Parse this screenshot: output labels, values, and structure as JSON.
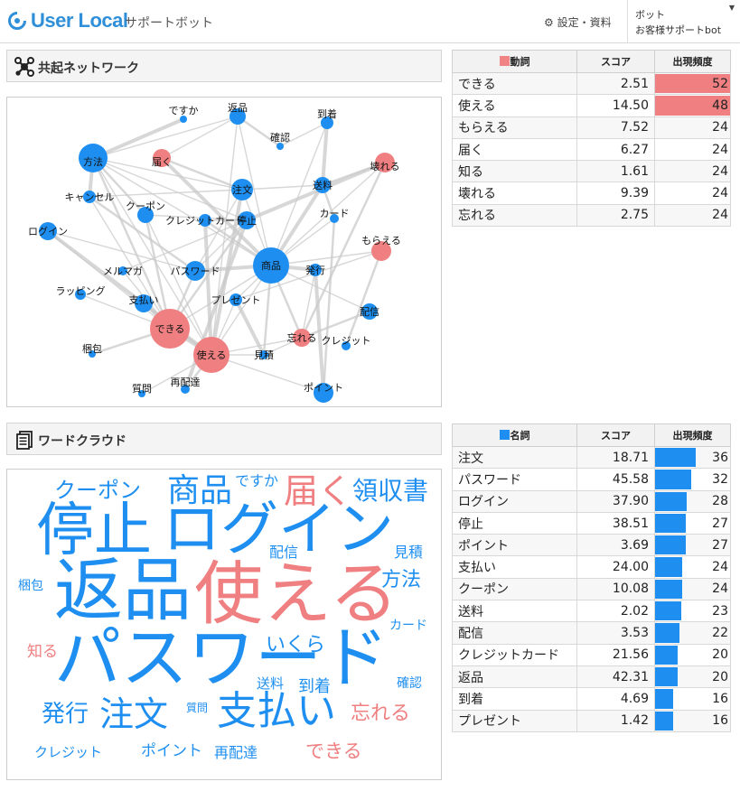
{
  "header": {
    "brand": "User Local",
    "subtitle": "サポートボット",
    "settings_link": "⚙ 設定・資料",
    "bot_label": "ボット",
    "bot_name": "お客様サポートbot"
  },
  "network": {
    "title": "共起ネットワーク",
    "nodes": [
      {
        "label": "ですか",
        "color": "blue",
        "size": 4
      },
      {
        "label": "返品",
        "color": "blue",
        "size": 9
      },
      {
        "label": "到着",
        "color": "blue",
        "size": 7
      },
      {
        "label": "確認",
        "color": "blue",
        "size": 4
      },
      {
        "label": "方法",
        "color": "blue",
        "size": 16
      },
      {
        "label": "届く",
        "color": "red",
        "size": 10
      },
      {
        "label": "壊れる",
        "color": "red",
        "size": 11
      },
      {
        "label": "キャンセル",
        "color": "blue",
        "size": 7
      },
      {
        "label": "送料",
        "color": "blue",
        "size": 9
      },
      {
        "label": "注文",
        "color": "blue",
        "size": 12
      },
      {
        "label": "クーポン",
        "color": "blue",
        "size": 9
      },
      {
        "label": "クレジットカード",
        "color": "blue",
        "size": 7
      },
      {
        "label": "停止",
        "color": "blue",
        "size": 10
      },
      {
        "label": "カード",
        "color": "blue",
        "size": 5
      },
      {
        "label": "ログイン",
        "color": "blue",
        "size": 10
      },
      {
        "label": "もらえる",
        "color": "red",
        "size": 11
      },
      {
        "label": "メルマガ",
        "color": "blue",
        "size": 5
      },
      {
        "label": "パスワード",
        "color": "blue",
        "size": 11
      },
      {
        "label": "商品",
        "color": "blue",
        "size": 20
      },
      {
        "label": "発行",
        "color": "blue",
        "size": 7
      },
      {
        "label": "ラッピング",
        "color": "blue",
        "size": 6
      },
      {
        "label": "支払い",
        "color": "blue",
        "size": 10
      },
      {
        "label": "プレゼント",
        "color": "blue",
        "size": 7
      },
      {
        "label": "配信",
        "color": "blue",
        "size": 9
      },
      {
        "label": "できる",
        "color": "red",
        "size": 22
      },
      {
        "label": "忘れる",
        "color": "red",
        "size": 10
      },
      {
        "label": "クレジット",
        "color": "blue",
        "size": 5
      },
      {
        "label": "梱包",
        "color": "blue",
        "size": 4
      },
      {
        "label": "使える",
        "color": "red",
        "size": 20
      },
      {
        "label": "見積",
        "color": "blue",
        "size": 5
      },
      {
        "label": "ポイント",
        "color": "blue",
        "size": 11
      },
      {
        "label": "質問",
        "color": "blue",
        "size": 4
      },
      {
        "label": "再配達",
        "color": "blue",
        "size": 5
      }
    ],
    "edges": [
      [
        "方法",
        "ですか"
      ],
      [
        "方法",
        "返品"
      ],
      [
        "方法",
        "注文"
      ],
      [
        "方法",
        "クーポン"
      ],
      [
        "方法",
        "停止"
      ],
      [
        "方法",
        "キャンセル"
      ],
      [
        "方法",
        "できる"
      ],
      [
        "方法",
        "使える"
      ],
      [
        "方法",
        "商品"
      ],
      [
        "届く",
        "注文"
      ],
      [
        "届く",
        "商品"
      ],
      [
        "届く",
        "返品"
      ],
      [
        "返品",
        "確認"
      ],
      [
        "返品",
        "商品"
      ],
      [
        "返品",
        "使える"
      ],
      [
        "到着",
        "送料"
      ],
      [
        "到着",
        "商品"
      ],
      [
        "到着",
        "確認"
      ],
      [
        "壊れる",
        "送料"
      ],
      [
        "壊れる",
        "商品"
      ],
      [
        "壊れる",
        "停止"
      ],
      [
        "壊れる",
        "忘れる"
      ],
      [
        "キャンセル",
        "注文"
      ],
      [
        "キャンセル",
        "できる"
      ],
      [
        "キャンセル",
        "パスワード"
      ],
      [
        "送料",
        "商品"
      ],
      [
        "送料",
        "注文"
      ],
      [
        "送料",
        "カード"
      ],
      [
        "注文",
        "パスワード"
      ],
      [
        "注文",
        "商品"
      ],
      [
        "注文",
        "使える"
      ],
      [
        "クーポン",
        "使える"
      ],
      [
        "クーポン",
        "停止"
      ],
      [
        "クーポン",
        "できる"
      ],
      [
        "クレジットカード",
        "停止"
      ],
      [
        "クレジットカード",
        "使える"
      ],
      [
        "クレジットカード",
        "商品"
      ],
      [
        "停止",
        "パスワード"
      ],
      [
        "停止",
        "メルマガ"
      ],
      [
        "停止",
        "できる"
      ],
      [
        "停止",
        "再配達"
      ],
      [
        "カード",
        "商品"
      ],
      [
        "カード",
        "ポイント"
      ],
      [
        "ログイン",
        "パスワード"
      ],
      [
        "ログイン",
        "できる"
      ],
      [
        "ログイン",
        "使える"
      ],
      [
        "もらえる",
        "商品"
      ],
      [
        "もらえる",
        "プレゼント"
      ],
      [
        "もらえる",
        "クレジット"
      ],
      [
        "メルマガ",
        "できる"
      ],
      [
        "パスワード",
        "商品"
      ],
      [
        "パスワード",
        "できる"
      ],
      [
        "商品",
        "できる"
      ],
      [
        "商品",
        "使える"
      ],
      [
        "商品",
        "忘れる"
      ],
      [
        "商品",
        "発行"
      ],
      [
        "商品",
        "配信"
      ],
      [
        "商品",
        "見積"
      ],
      [
        "商品",
        "プレゼント"
      ],
      [
        "発行",
        "忘れる"
      ],
      [
        "発行",
        "ポイント"
      ],
      [
        "ラッピング",
        "できる"
      ],
      [
        "支払い",
        "使える"
      ],
      [
        "支払い",
        "できる"
      ],
      [
        "プレゼント",
        "使える"
      ],
      [
        "プレゼント",
        "見積"
      ],
      [
        "配信",
        "忘れる"
      ],
      [
        "忘れる",
        "使える"
      ],
      [
        "忘れる",
        "見積"
      ],
      [
        "できる",
        "梱包"
      ],
      [
        "できる",
        "使える"
      ],
      [
        "使える",
        "質問"
      ],
      [
        "使える",
        "再配達"
      ],
      [
        "使える",
        "見積"
      ],
      [
        "ポイント",
        "使える"
      ]
    ]
  },
  "verb_table": {
    "legend_color": "#f08383",
    "headers": {
      "word": "動詞",
      "score": "スコア",
      "freq": "出現頻度"
    },
    "rows": [
      {
        "word": "できる",
        "score": "2.51",
        "freq": 52
      },
      {
        "word": "使える",
        "score": "14.50",
        "freq": 48
      },
      {
        "word": "もらえる",
        "score": "7.52",
        "freq": 24
      },
      {
        "word": "届く",
        "score": "6.27",
        "freq": 24
      },
      {
        "word": "知る",
        "score": "1.61",
        "freq": 24
      },
      {
        "word": "壊れる",
        "score": "9.39",
        "freq": 24
      },
      {
        "word": "忘れる",
        "score": "2.75",
        "freq": 24
      }
    ]
  },
  "cloud": {
    "title": "ワードクラウド",
    "words": [
      {
        "text": "クーポン",
        "color": "blue"
      },
      {
        "text": "商品",
        "color": "blue"
      },
      {
        "text": "ですか",
        "color": "blue"
      },
      {
        "text": "届く",
        "color": "red"
      },
      {
        "text": "領収書",
        "color": "blue"
      },
      {
        "text": "停止",
        "color": "blue"
      },
      {
        "text": "ログイン",
        "color": "blue"
      },
      {
        "text": "配信",
        "color": "blue"
      },
      {
        "text": "見積",
        "color": "blue"
      },
      {
        "text": "梱包",
        "color": "blue"
      },
      {
        "text": "返品",
        "color": "blue"
      },
      {
        "text": "使える",
        "color": "red"
      },
      {
        "text": "方法",
        "color": "blue"
      },
      {
        "text": "カード",
        "color": "blue"
      },
      {
        "text": "知る",
        "color": "red"
      },
      {
        "text": "いくら",
        "color": "blue"
      },
      {
        "text": "パスワード",
        "color": "blue"
      },
      {
        "text": "確認",
        "color": "blue"
      },
      {
        "text": "送料",
        "color": "blue"
      },
      {
        "text": "到着",
        "color": "blue"
      },
      {
        "text": "発行",
        "color": "blue"
      },
      {
        "text": "注文",
        "color": "blue"
      },
      {
        "text": "質問",
        "color": "blue"
      },
      {
        "text": "支払い",
        "color": "blue"
      },
      {
        "text": "忘れる",
        "color": "red"
      },
      {
        "text": "クレジット",
        "color": "blue"
      },
      {
        "text": "ポイント",
        "color": "blue"
      },
      {
        "text": "再配達",
        "color": "blue"
      },
      {
        "text": "できる",
        "color": "red"
      }
    ]
  },
  "noun_table": {
    "legend_color": "#1e8ff0",
    "headers": {
      "word": "名詞",
      "score": "スコア",
      "freq": "出現頻度"
    },
    "rows": [
      {
        "word": "注文",
        "score": "18.71",
        "freq": 36
      },
      {
        "word": "パスワード",
        "score": "45.58",
        "freq": 32
      },
      {
        "word": "ログイン",
        "score": "37.90",
        "freq": 28
      },
      {
        "word": "停止",
        "score": "38.51",
        "freq": 27
      },
      {
        "word": "ポイント",
        "score": "3.69",
        "freq": 27
      },
      {
        "word": "支払い",
        "score": "24.00",
        "freq": 24
      },
      {
        "word": "クーポン",
        "score": "10.08",
        "freq": 24
      },
      {
        "word": "送料",
        "score": "2.02",
        "freq": 23
      },
      {
        "word": "配信",
        "score": "3.53",
        "freq": 22
      },
      {
        "word": "クレジットカード",
        "score": "21.56",
        "freq": 20
      },
      {
        "word": "返品",
        "score": "42.31",
        "freq": 20
      },
      {
        "word": "到着",
        "score": "4.69",
        "freq": 16
      },
      {
        "word": "プレゼント",
        "score": "1.42",
        "freq": 16
      }
    ]
  },
  "colors": {
    "blue": "#1e8ff0",
    "red": "#ef7f80",
    "brand": "#2f8fd8"
  }
}
